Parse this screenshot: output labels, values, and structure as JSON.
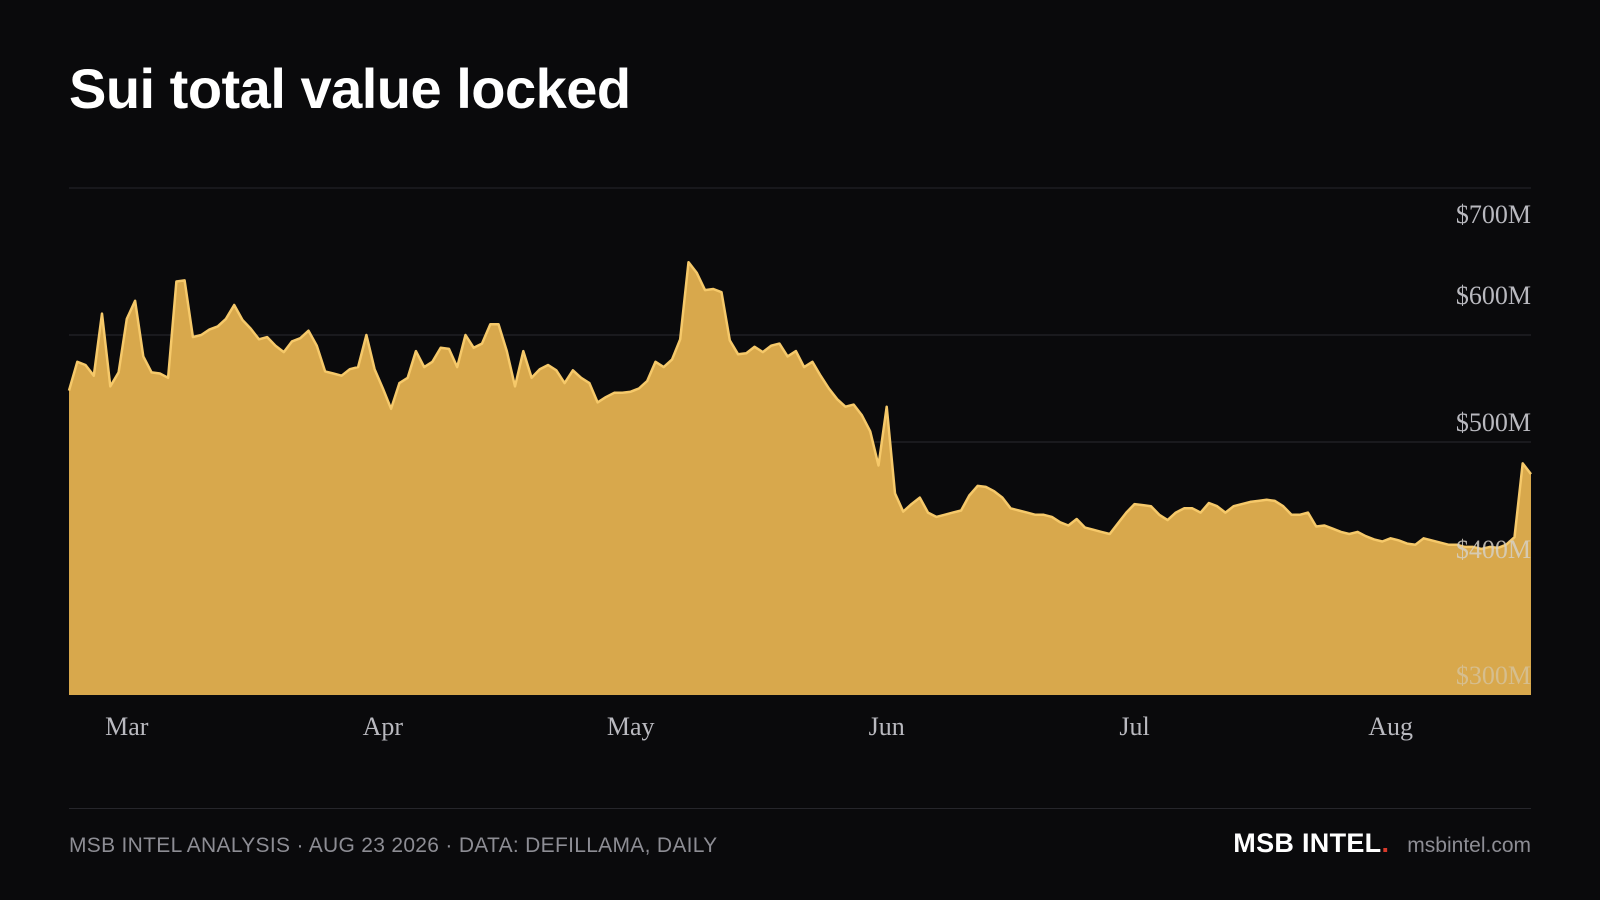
{
  "title": "Sui total value locked",
  "colors": {
    "background": "#0a0a0c",
    "area_fill": "#d8a84c",
    "area_stroke": "#f6c96a",
    "grid": "#2a2a2f",
    "tick_label": "#b9b9bf",
    "footer_text": "#8d8d94",
    "brand_dot": "#d93a2b"
  },
  "footer": {
    "left": "MSB INTEL ANALYSIS · AUG 23 2026 · DATA: DEFILLAMA, DAILY",
    "brand": "MSB INTEL",
    "brand_dot": ".",
    "site": "msbintel.com"
  },
  "chart_data": {
    "type": "area",
    "title": "Sui total value locked",
    "xlabel": "",
    "ylabel": "",
    "ylim": [
      300,
      700
    ],
    "y_unit": "$M",
    "yticks": [
      {
        "value": 300,
        "label": "$300M"
      },
      {
        "value": 400,
        "label": "$400M"
      },
      {
        "value": 500,
        "label": "$500M"
      },
      {
        "value": 600,
        "label": "$600M"
      },
      {
        "value": 700,
        "label": "$700M"
      }
    ],
    "xticks": [
      {
        "day": 7,
        "label": "Mar"
      },
      {
        "day": 38,
        "label": "Apr"
      },
      {
        "day": 68,
        "label": "May"
      },
      {
        "day": 99,
        "label": "Jun"
      },
      {
        "day": 129,
        "label": "Jul"
      },
      {
        "day": 160,
        "label": "Aug"
      }
    ],
    "grid": true,
    "series": [
      {
        "values": [
          548,
          575,
          572,
          562,
          620,
          552,
          565,
          615,
          632,
          580,
          565,
          564,
          560,
          650,
          651,
          598,
          600,
          605,
          608,
          615,
          628,
          614,
          606,
          596,
          598,
          590,
          584,
          594,
          597,
          604,
          590,
          566,
          564,
          562,
          568,
          570,
          600,
          568,
          550,
          531,
          555,
          560,
          585,
          570,
          575,
          588,
          587,
          570,
          600,
          588,
          592,
          610,
          610,
          585,
          552,
          585,
          560,
          568,
          572,
          567,
          555,
          567,
          560,
          555,
          537,
          542,
          546,
          546,
          547,
          550,
          557,
          575,
          570,
          577,
          596,
          668,
          658,
          642,
          643,
          640,
          595,
          582,
          583,
          589,
          584,
          590,
          592,
          580,
          585,
          570,
          575,
          562,
          550,
          540,
          533,
          535,
          525,
          510,
          478,
          533,
          452,
          435,
          442,
          448,
          434,
          430,
          432,
          434,
          436,
          450,
          459,
          458,
          454,
          448,
          438,
          436,
          434,
          432,
          432,
          430,
          425,
          422,
          428,
          420,
          418,
          416,
          414,
          424,
          434,
          442,
          441,
          440,
          432,
          427,
          434,
          438,
          438,
          434,
          443,
          440,
          434,
          440,
          442,
          444,
          445,
          446,
          445,
          440,
          432,
          432,
          434,
          421,
          422,
          419,
          416,
          414,
          416,
          412,
          409,
          407,
          410,
          408,
          405,
          404,
          410,
          408,
          406,
          404,
          404,
          402,
          402,
          400,
          402,
          401,
          404,
          411,
          480,
          470
        ]
      }
    ]
  }
}
